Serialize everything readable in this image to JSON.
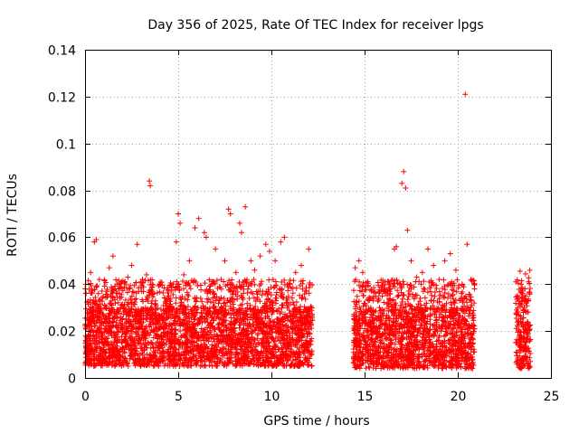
{
  "chart_data": {
    "type": "scatter",
    "title": "Day 356 of 2025, Rate Of TEC Index for receiver lpgs",
    "xlabel": "GPS time / hours",
    "ylabel": "ROTI / TECUs",
    "xlim": [
      0,
      25
    ],
    "ylim": [
      0,
      0.14
    ],
    "xticks": [
      "0",
      "5",
      "10",
      "15",
      "20",
      "25"
    ],
    "yticks": [
      "0",
      "0.02",
      "0.04",
      "0.06",
      "0.08",
      "0.1",
      "0.12",
      "0.14"
    ],
    "grid": true,
    "marker": "plus",
    "color": "#ff0000",
    "series": [
      {
        "name": "ROTI",
        "points": [
          [
            0.1,
            0.015
          ],
          [
            0.2,
            0.025
          ],
          [
            0.3,
            0.045
          ],
          [
            0.5,
            0.058
          ],
          [
            0.6,
            0.059
          ],
          [
            0.4,
            0.032
          ],
          [
            0.8,
            0.02
          ],
          [
            1.1,
            0.03
          ],
          [
            1.3,
            0.047
          ],
          [
            1.5,
            0.052
          ],
          [
            1.8,
            0.038
          ],
          [
            2.0,
            0.025
          ],
          [
            2.3,
            0.043
          ],
          [
            2.5,
            0.048
          ],
          [
            2.8,
            0.057
          ],
          [
            3.0,
            0.041
          ],
          [
            3.3,
            0.044
          ],
          [
            3.45,
            0.084
          ],
          [
            3.5,
            0.082
          ],
          [
            3.7,
            0.036
          ],
          [
            4.0,
            0.04
          ],
          [
            4.3,
            0.029
          ],
          [
            4.6,
            0.034
          ],
          [
            4.9,
            0.058
          ],
          [
            5.0,
            0.07
          ],
          [
            5.1,
            0.066
          ],
          [
            5.3,
            0.044
          ],
          [
            5.6,
            0.05
          ],
          [
            5.9,
            0.064
          ],
          [
            6.1,
            0.068
          ],
          [
            6.4,
            0.062
          ],
          [
            6.5,
            0.06
          ],
          [
            6.8,
            0.04
          ],
          [
            7.0,
            0.055
          ],
          [
            7.3,
            0.042
          ],
          [
            7.5,
            0.05
          ],
          [
            7.7,
            0.072
          ],
          [
            7.8,
            0.07
          ],
          [
            8.1,
            0.045
          ],
          [
            8.3,
            0.066
          ],
          [
            8.4,
            0.062
          ],
          [
            8.6,
            0.073
          ],
          [
            8.9,
            0.05
          ],
          [
            9.1,
            0.046
          ],
          [
            9.4,
            0.052
          ],
          [
            9.7,
            0.057
          ],
          [
            9.9,
            0.054
          ],
          [
            10.2,
            0.05
          ],
          [
            10.5,
            0.058
          ],
          [
            10.7,
            0.06
          ],
          [
            11.0,
            0.04
          ],
          [
            11.3,
            0.045
          ],
          [
            11.6,
            0.048
          ],
          [
            12.0,
            0.055
          ],
          [
            12.1,
            0.03
          ],
          [
            14.5,
            0.047
          ],
          [
            14.7,
            0.05
          ],
          [
            14.9,
            0.045
          ],
          [
            15.2,
            0.034
          ],
          [
            15.5,
            0.028
          ],
          [
            15.8,
            0.03
          ],
          [
            16.1,
            0.041
          ],
          [
            16.4,
            0.038
          ],
          [
            16.6,
            0.055
          ],
          [
            16.7,
            0.056
          ],
          [
            17.0,
            0.083
          ],
          [
            17.1,
            0.088
          ],
          [
            17.2,
            0.081
          ],
          [
            17.3,
            0.063
          ],
          [
            17.5,
            0.05
          ],
          [
            17.8,
            0.043
          ],
          [
            18.1,
            0.045
          ],
          [
            18.4,
            0.055
          ],
          [
            18.7,
            0.048
          ],
          [
            19.0,
            0.042
          ],
          [
            19.3,
            0.05
          ],
          [
            19.6,
            0.053
          ],
          [
            19.9,
            0.046
          ],
          [
            20.2,
            0.036
          ],
          [
            20.4,
            0.121
          ],
          [
            20.5,
            0.057
          ],
          [
            20.7,
            0.042
          ],
          [
            20.9,
            0.038
          ],
          [
            23.2,
            0.035
          ],
          [
            23.4,
            0.04
          ],
          [
            23.6,
            0.038
          ],
          [
            23.8,
            0.041
          ],
          [
            23.3,
            0.02
          ],
          [
            23.5,
            0.022
          ]
        ]
      }
    ],
    "dense_band": {
      "description": "continuous dense cloud of ROTI samples",
      "segments": [
        {
          "x_range": [
            0,
            12.2
          ],
          "y_typical": [
            0.005,
            0.03
          ]
        },
        {
          "x_range": [
            14.4,
            20.9
          ],
          "y_typical": [
            0.004,
            0.03
          ]
        },
        {
          "x_range": [
            23.1,
            23.9
          ],
          "y_typical": [
            0.004,
            0.034
          ]
        }
      ]
    }
  }
}
